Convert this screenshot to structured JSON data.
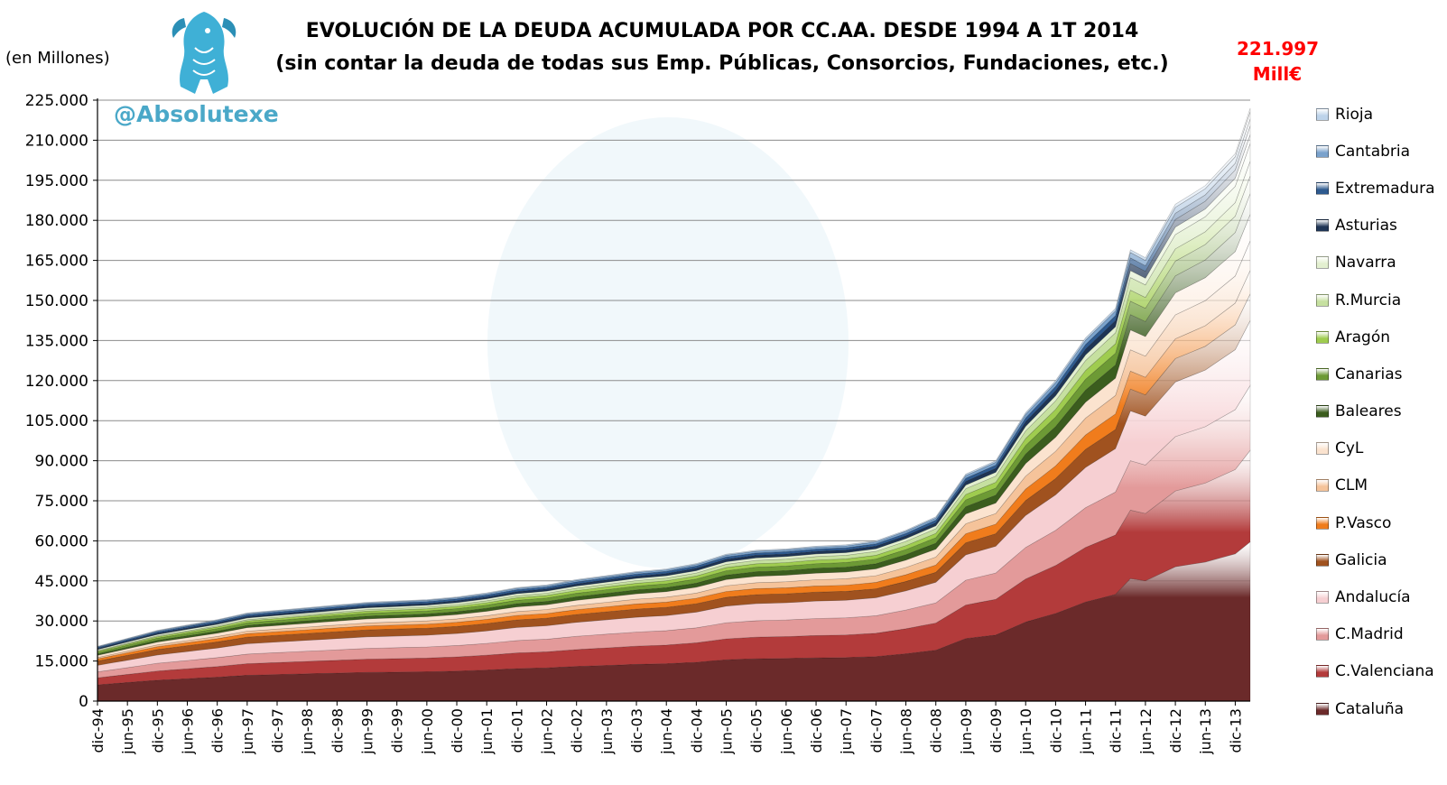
{
  "header": {
    "title_line1": "EVOLUCIÓN DE LA DEUDA ACUMULADA POR CC.AA. DESDE 1994 A 1T 2014",
    "title_line2": "(sin contar la deuda de todas sus Emp. Públicas, Consorcios, Fundaciones, etc.)",
    "unit": "(en Millones)",
    "brand": "@Absolutexe",
    "annotation_value": "221.997",
    "annotation_unit": "Mill€"
  },
  "colors": {
    "brand": "#4aa8c8",
    "annotation": "#ff0000",
    "grid": "#8c8c8c",
    "axis": "#000000"
  },
  "chart_data": {
    "type": "area",
    "stacked": true,
    "title": "EVOLUCIÓN DE LA DEUDA ACUMULADA POR CC.AA. DESDE 1994 A 1T 2014",
    "subtitle": "(sin contar la deuda de todas sus Emp. Públicas, Consorcios, Fundaciones, etc.)",
    "ylabel": "(en Millones)",
    "ylim": [
      0,
      225000
    ],
    "yticks": [
      0,
      15000,
      30000,
      45000,
      60000,
      75000,
      90000,
      105000,
      120000,
      135000,
      150000,
      165000,
      180000,
      195000,
      210000,
      225000
    ],
    "ytick_labels": [
      "0",
      "15.000",
      "30.000",
      "45.000",
      "60.000",
      "75.000",
      "90.000",
      "105.000",
      "120.000",
      "135.000",
      "150.000",
      "165.000",
      "180.000",
      "195.000",
      "210.000",
      "225.000"
    ],
    "xticks": [
      "dic-94",
      "jun-95",
      "dic-95",
      "jun-96",
      "dic-96",
      "jun-97",
      "dic-97",
      "jun-98",
      "dic-98",
      "jun-99",
      "dic-99",
      "jun-00",
      "dic-00",
      "jun-01",
      "dic-01",
      "jun-02",
      "dic-02",
      "jun-03",
      "dic-03",
      "jun-04",
      "dic-04",
      "jun-05",
      "dic-05",
      "jun-06",
      "dic-06",
      "jun-07",
      "dic-07",
      "jun-08",
      "dic-08",
      "jun-09",
      "dic-09",
      "jun-10",
      "dic-10",
      "jun-11",
      "dic-11",
      "jun-12",
      "dic-12",
      "jun-13",
      "dic-13"
    ],
    "grid": true,
    "legend_position": "right",
    "x_period": "quarterly",
    "x_start": "dic-94",
    "x_end": "mar-14",
    "total_x": [
      "dic-94",
      "jun-95",
      "dic-95",
      "jun-96",
      "dic-96",
      "jun-97",
      "dic-97",
      "jun-98",
      "dic-98",
      "jun-99",
      "dic-99",
      "jun-00",
      "dic-00",
      "jun-01",
      "dic-01",
      "jun-02",
      "dic-02",
      "jun-03",
      "dic-03",
      "jun-04",
      "dic-04",
      "jun-05",
      "dic-05",
      "jun-06",
      "dic-06",
      "jun-07",
      "dic-07",
      "jun-08",
      "dic-08",
      "mar-09",
      "jun-09",
      "dic-09",
      "jun-10",
      "dic-10",
      "jun-11",
      "dic-11",
      "mar-12",
      "jun-12",
      "dic-12",
      "jun-13",
      "dic-13",
      "mar-14"
    ],
    "total_values": [
      20500,
      23500,
      26500,
      28500,
      30500,
      33000,
      34000,
      35000,
      36000,
      37000,
      37500,
      38000,
      39000,
      40500,
      42500,
      43500,
      45500,
      47000,
      48500,
      49500,
      51500,
      55000,
      56500,
      57000,
      58000,
      58500,
      60000,
      64000,
      69000,
      77000,
      85000,
      90000,
      108000,
      120000,
      136000,
      147000,
      169000,
      166000,
      186000,
      193000,
      205000,
      221997
    ],
    "series": [
      {
        "name": "Cataluña",
        "color": "#6b2a2a",
        "share_start": 0.3,
        "share_end": 0.27
      },
      {
        "name": "C.Valenciana",
        "color": "#b33b3b",
        "share_start": 0.13,
        "share_end": 0.155
      },
      {
        "name": "C.Madrid",
        "color": "#e39a9a",
        "share_start": 0.11,
        "share_end": 0.11
      },
      {
        "name": "Andalucía",
        "color": "#f6cfd2",
        "share_start": 0.12,
        "share_end": 0.11
      },
      {
        "name": "Galicia",
        "color": "#a0521f",
        "share_start": 0.08,
        "share_end": 0.045
      },
      {
        "name": "P.Vasco",
        "color": "#f07c1c",
        "share_start": 0.04,
        "share_end": 0.04
      },
      {
        "name": "CLM",
        "color": "#f5c39a",
        "share_start": 0.025,
        "share_end": 0.05
      },
      {
        "name": "CyL",
        "color": "#fbe3cf",
        "share_start": 0.04,
        "share_end": 0.045
      },
      {
        "name": "Baleares",
        "color": "#3b5d1e",
        "share_start": 0.025,
        "share_end": 0.035
      },
      {
        "name": "Canarias",
        "color": "#6d9a35",
        "share_start": 0.03,
        "share_end": 0.03
      },
      {
        "name": "Aragón",
        "color": "#9fcc4f",
        "share_start": 0.02,
        "share_end": 0.025
      },
      {
        "name": "R.Murcia",
        "color": "#c6e0a0",
        "share_start": 0.012,
        "share_end": 0.03
      },
      {
        "name": "Navarra",
        "color": "#e3f0d0",
        "share_start": 0.02,
        "share_end": 0.015
      },
      {
        "name": "Asturias",
        "color": "#1f3555",
        "share_start": 0.02,
        "share_end": 0.015
      },
      {
        "name": "Extremadura",
        "color": "#2e5a8f",
        "share_start": 0.02,
        "share_end": 0.012
      },
      {
        "name": "Cantabria",
        "color": "#7aa2cc",
        "share_start": 0.012,
        "share_end": 0.012
      },
      {
        "name": "Rioja",
        "color": "#bdd3ea",
        "share_start": 0.008,
        "share_end": 0.006
      }
    ]
  }
}
